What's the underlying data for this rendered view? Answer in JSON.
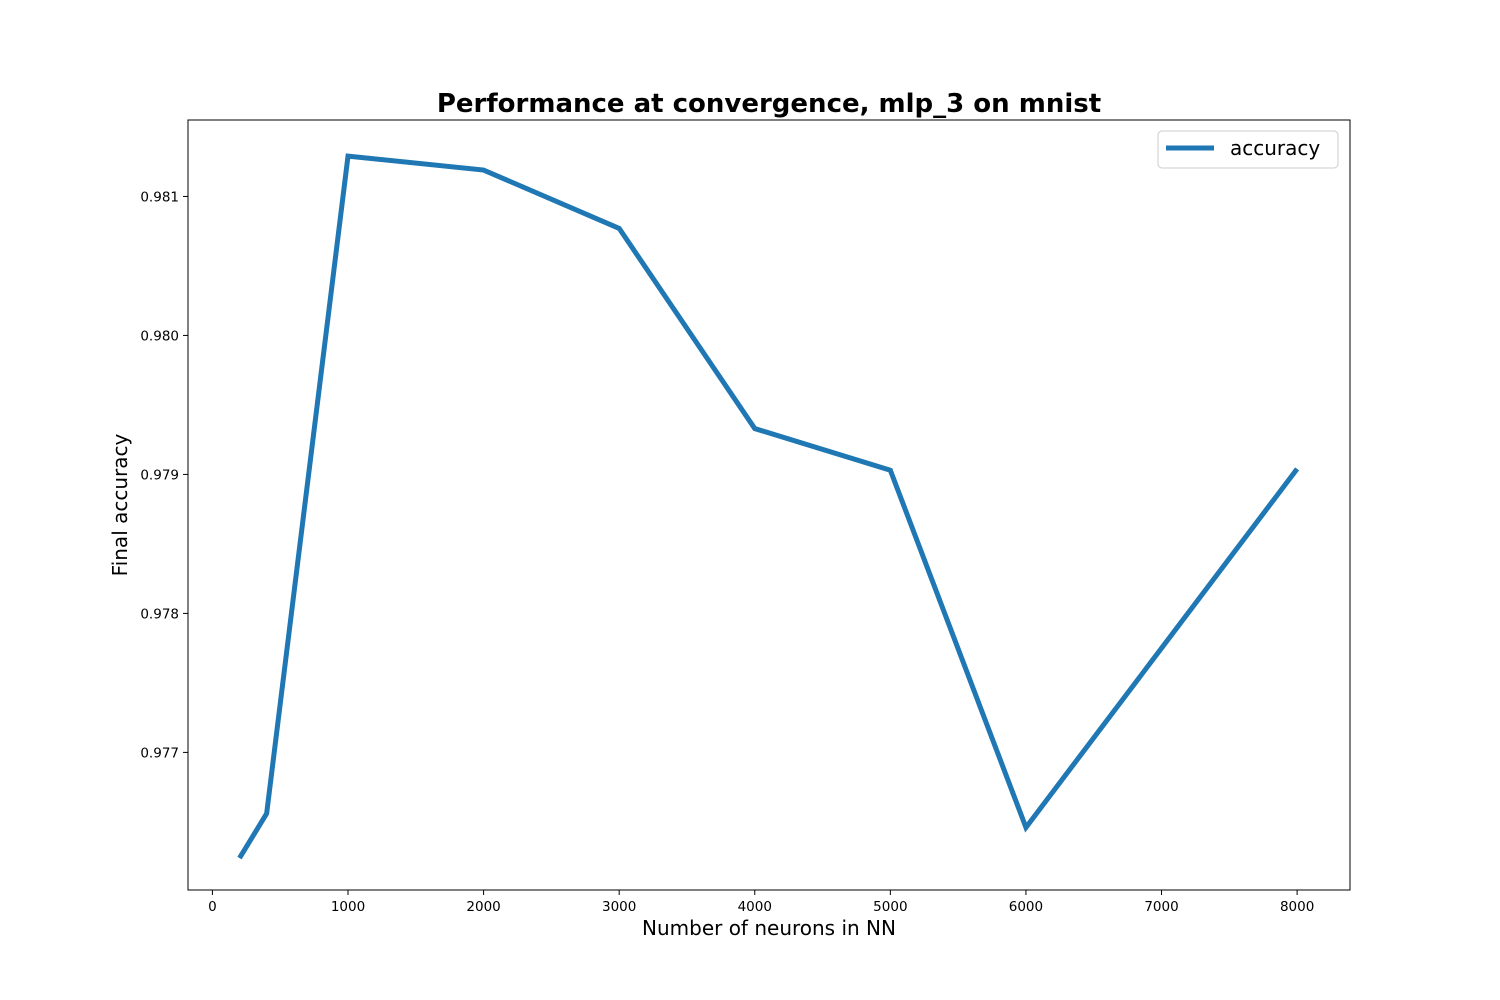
{
  "chart_data": {
    "type": "line",
    "title": "Performance at convergence, mlp_3 on mnist",
    "xlabel": "Number of neurons in NN",
    "ylabel": "Final accuracy",
    "xlim": [
      -180,
      8390
    ],
    "ylim": [
      0.97601,
      0.98155
    ],
    "xticks": [
      0,
      1000,
      2000,
      3000,
      4000,
      5000,
      6000,
      7000,
      8000
    ],
    "xtick_labels": [
      "0",
      "1000",
      "2000",
      "3000",
      "4000",
      "5000",
      "6000",
      "7000",
      "8000"
    ],
    "yticks": [
      0.977,
      0.978,
      0.979,
      0.98,
      0.981
    ],
    "ytick_labels": [
      "0.977",
      "0.978",
      "0.979",
      "0.980",
      "0.981"
    ],
    "grid": false,
    "legend_position": "upper-right",
    "series": [
      {
        "name": "accuracy",
        "color": "#1f77b4",
        "x": [
          200,
          400,
          1000,
          2000,
          3000,
          4000,
          5000,
          6000,
          8000
        ],
        "y": [
          0.97624,
          0.97656,
          0.98129,
          0.98119,
          0.98077,
          0.97933,
          0.97903,
          0.97646,
          0.97904
        ]
      }
    ]
  }
}
